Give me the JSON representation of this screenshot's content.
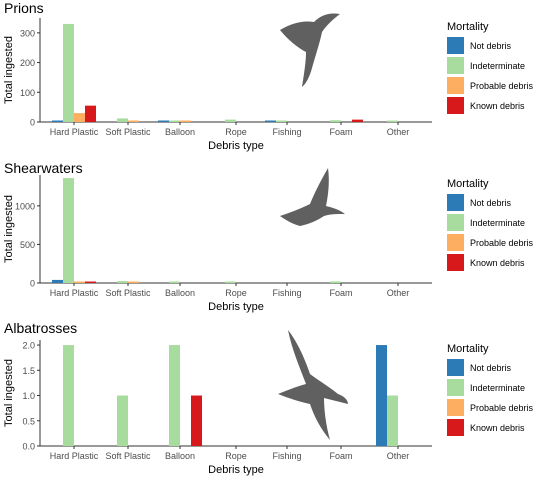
{
  "mortality_colors": {
    "Not debris": "#2c7bb6",
    "Indeterminate": "#a8dc9f",
    "Probable debris": "#fdae61",
    "Known debris": "#d7191c"
  },
  "bird_silhouette_color": "#606060",
  "chart_data": [
    {
      "type": "bar",
      "title": "Prions",
      "xlabel": "Debris type",
      "ylabel": "Total ingested",
      "categories": [
        "Hard Plastic",
        "Soft Plastic",
        "Balloon",
        "Rope",
        "Fishing",
        "Foam",
        "Other"
      ],
      "ylim": [
        0,
        350
      ],
      "yticks": [
        0,
        100,
        200,
        300
      ],
      "ytick_labels": [
        "0",
        "100",
        "200",
        "300"
      ],
      "series": [
        {
          "name": "Not debris",
          "values": [
            2,
            0,
            3,
            0,
            3,
            0,
            0
          ]
        },
        {
          "name": "Indeterminate",
          "values": [
            330,
            12,
            5,
            8,
            3,
            6,
            5
          ]
        },
        {
          "name": "Probable debris",
          "values": [
            30,
            5,
            3,
            0,
            0,
            0,
            0
          ]
        },
        {
          "name": "Known debris",
          "values": [
            55,
            0,
            0,
            0,
            0,
            8,
            0
          ]
        }
      ],
      "legend": {
        "title": "Mortality",
        "placement": "right"
      },
      "grid": false
    },
    {
      "type": "bar",
      "title": "Shearwaters",
      "xlabel": "Debris type",
      "ylabel": "Total ingested",
      "categories": [
        "Hard Plastic",
        "Soft Plastic",
        "Balloon",
        "Rope",
        "Fishing",
        "Foam",
        "Other"
      ],
      "ylim": [
        0,
        1400
      ],
      "yticks": [
        0,
        500,
        1000
      ],
      "ytick_labels": [
        "0",
        "500",
        "1000"
      ],
      "series": [
        {
          "name": "Not debris",
          "values": [
            40,
            0,
            0,
            0,
            0,
            0,
            0
          ]
        },
        {
          "name": "Indeterminate",
          "values": [
            1360,
            25,
            20,
            8,
            0,
            20,
            0
          ]
        },
        {
          "name": "Probable debris",
          "values": [
            15,
            10,
            0,
            0,
            0,
            0,
            0
          ]
        },
        {
          "name": "Known debris",
          "values": [
            12,
            0,
            0,
            0,
            0,
            0,
            0
          ]
        }
      ],
      "legend": {
        "title": "Mortality",
        "placement": "right"
      },
      "grid": false
    },
    {
      "type": "bar",
      "title": "Albatrosses",
      "xlabel": "Debris type",
      "ylabel": "Total ingested",
      "categories": [
        "Hard Plastic",
        "Soft Plastic",
        "Balloon",
        "Rope",
        "Fishing",
        "Foam",
        "Other"
      ],
      "ylim": [
        0,
        2.1
      ],
      "yticks": [
        0,
        0.5,
        1.0,
        1.5,
        2.0
      ],
      "ytick_labels": [
        "0.0",
        "0.5",
        "1.0",
        "1.5",
        "2.0"
      ],
      "series": [
        {
          "name": "Not debris",
          "values": [
            0,
            0,
            0,
            0,
            0,
            0,
            2
          ]
        },
        {
          "name": "Indeterminate",
          "values": [
            2,
            1,
            2,
            0,
            0,
            0,
            1
          ]
        },
        {
          "name": "Probable debris",
          "values": [
            0,
            0,
            0,
            0,
            0,
            0,
            0
          ]
        },
        {
          "name": "Known debris",
          "values": [
            0,
            0,
            1,
            0,
            0,
            0,
            0
          ]
        }
      ],
      "legend": {
        "title": "Mortality",
        "placement": "right"
      },
      "grid": false
    }
  ]
}
